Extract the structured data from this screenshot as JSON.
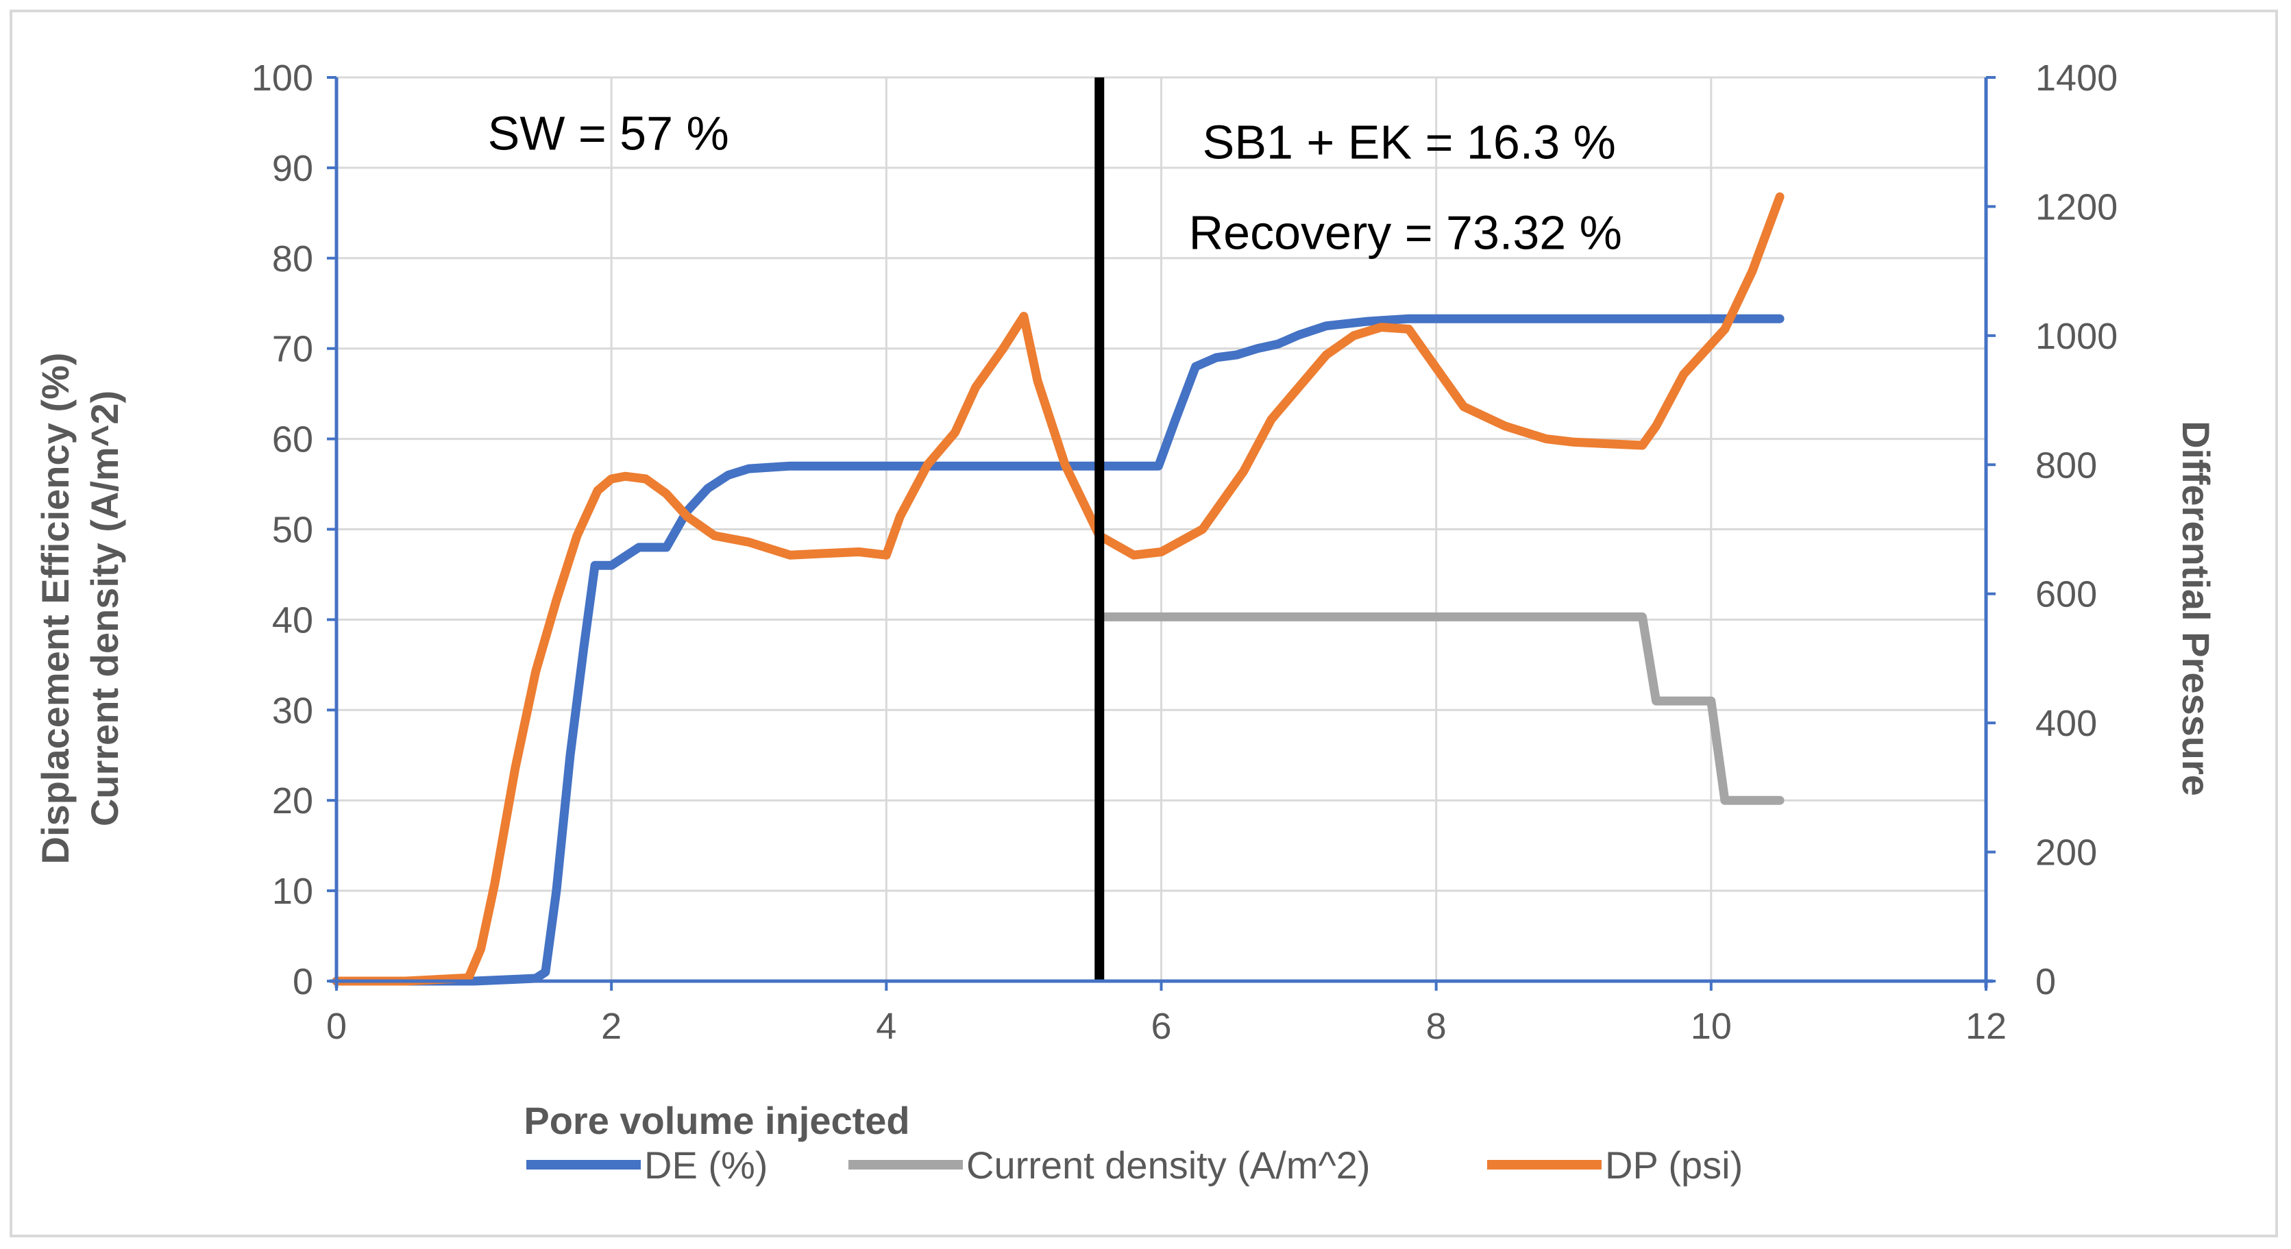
{
  "chart_data": {
    "type": "line",
    "title": "",
    "xlabel": "Pore volume injected",
    "ylabel_left_lines": [
      "Displacement Efficiency (%)",
      "Current density (A/m^2)"
    ],
    "ylabel_right": "Differential Pressure",
    "xlim": [
      0,
      12
    ],
    "ylim_left": [
      0,
      100
    ],
    "ylim_right": [
      0,
      1400
    ],
    "x_ticks": [
      0,
      2,
      4,
      6,
      8,
      10,
      12
    ],
    "y_left_ticks": [
      0,
      10,
      20,
      30,
      40,
      50,
      60,
      70,
      80,
      90,
      100
    ],
    "y_right_ticks": [
      0,
      200,
      400,
      600,
      800,
      1000,
      1200,
      1400
    ],
    "grid": true,
    "legend_position": "bottom",
    "divider_x": 5.55,
    "annotations": [
      {
        "text": "SW = 57 %",
        "x": 1.1,
        "y": 92
      },
      {
        "text": "SB1 + EK = 16.3 %",
        "x": 6.3,
        "y": 91
      },
      {
        "text": "Recovery = 73.32 %",
        "x": 6.2,
        "y": 81
      }
    ],
    "series": [
      {
        "name": "DE (%)",
        "axis": "left",
        "color": "#4472c4",
        "x": [
          0,
          1.0,
          1.45,
          1.52,
          1.6,
          1.7,
          1.8,
          1.88,
          2.0,
          2.1,
          2.2,
          2.4,
          2.55,
          2.7,
          2.85,
          3.0,
          3.3,
          4.0,
          5.0,
          5.55,
          5.98,
          6.1,
          6.25,
          6.4,
          6.55,
          6.7,
          6.85,
          7.0,
          7.2,
          7.5,
          7.8,
          8.5,
          9.0,
          10.0,
          10.5
        ],
        "y": [
          0,
          0,
          0.3,
          1,
          10,
          25,
          37,
          46,
          46,
          47,
          48,
          48,
          52,
          54.5,
          56,
          56.7,
          57,
          57,
          57,
          57,
          57,
          62,
          68,
          69,
          69.3,
          70,
          70.5,
          71.5,
          72.5,
          73,
          73.3,
          73.3,
          73.3,
          73.3,
          73.3
        ]
      },
      {
        "name": "Current density (A/m^2)",
        "axis": "left",
        "color": "#a5a5a5",
        "x": [
          5.55,
          9.5,
          9.6,
          10.0,
          10.1,
          10.5
        ],
        "y": [
          40.3,
          40.3,
          31,
          31,
          20,
          20
        ]
      },
      {
        "name": "DP (psi)",
        "axis": "right",
        "color": "#ed7d31",
        "x": [
          0,
          0.5,
          0.96,
          1.05,
          1.15,
          1.3,
          1.45,
          1.6,
          1.75,
          1.9,
          2.0,
          2.1,
          2.25,
          2.4,
          2.55,
          2.75,
          3.0,
          3.3,
          3.5,
          3.8,
          4.0,
          4.1,
          4.3,
          4.5,
          4.65,
          4.85,
          5.0,
          5.1,
          5.3,
          5.55,
          5.8,
          6.0,
          6.3,
          6.6,
          6.8,
          7.0,
          7.2,
          7.4,
          7.6,
          7.8,
          8.0,
          8.2,
          8.5,
          8.8,
          9.0,
          9.2,
          9.5,
          9.6,
          9.8,
          10.1,
          10.3,
          10.5
        ],
        "y": [
          0,
          0,
          5,
          50,
          150,
          330,
          480,
          590,
          690,
          760,
          778,
          782,
          778,
          755,
          720,
          690,
          680,
          660,
          662,
          665,
          660,
          720,
          800,
          850,
          920,
          980,
          1030,
          930,
          800,
          690,
          660,
          665,
          700,
          790,
          870,
          920,
          970,
          1000,
          1013,
          1010,
          950,
          890,
          860,
          840,
          835,
          833,
          830,
          860,
          940,
          1010,
          1100,
          1215
        ]
      }
    ]
  }
}
